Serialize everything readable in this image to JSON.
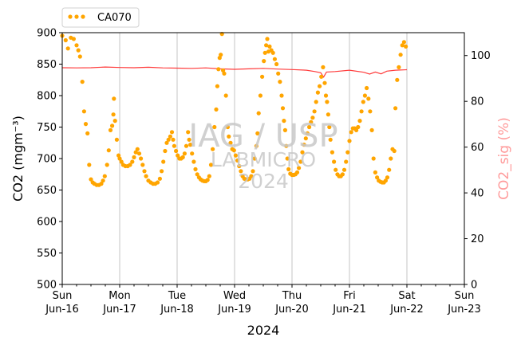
{
  "chart_data": {
    "type": "scatter",
    "xlabel": "2024",
    "ylabel": "CO2 (mgm⁻³)",
    "ylabel_right": "CO2_sig (%)",
    "xlim": [
      "2024-06-16",
      "2024-06-23"
    ],
    "ylim": [
      500,
      900
    ],
    "ylim_right": [
      0,
      110
    ],
    "y_ticks": [
      500,
      550,
      600,
      650,
      700,
      750,
      800,
      850,
      900
    ],
    "y_ticks_right": [
      0,
      20,
      40,
      60,
      80,
      100
    ],
    "x_ticks": [
      {
        "day": "Sun",
        "date": "Jun-16"
      },
      {
        "day": "Mon",
        "date": "Jun-17"
      },
      {
        "day": "Tue",
        "date": "Jun-18"
      },
      {
        "day": "Wed",
        "date": "Jun-19"
      },
      {
        "day": "Thu",
        "date": "Jun-20"
      },
      {
        "day": "Fri",
        "date": "Jun-21"
      },
      {
        "day": "Sat",
        "date": "Jun-22"
      },
      {
        "day": "Sun",
        "date": "Jun-23"
      }
    ],
    "grid": "vertical at day ticks",
    "legend_position": "top-left, above plot",
    "watermark": [
      "IAG / USP",
      "LABMICRO",
      "2024"
    ],
    "series": [
      {
        "name": "CA070",
        "axis": "left",
        "style": "points",
        "color": "#FFA500",
        "x_unit": "days since 2024-06-16 00:00",
        "points": [
          [
            0.0,
            895
          ],
          [
            0.06,
            888
          ],
          [
            0.1,
            875
          ],
          [
            0.15,
            892
          ],
          [
            0.2,
            890
          ],
          [
            0.25,
            880
          ],
          [
            0.28,
            872
          ],
          [
            0.31,
            862
          ],
          [
            0.35,
            822
          ],
          [
            0.38,
            775
          ],
          [
            0.41,
            755
          ],
          [
            0.44,
            740
          ],
          [
            0.47,
            690
          ],
          [
            0.5,
            667
          ],
          [
            0.53,
            662
          ],
          [
            0.56,
            660
          ],
          [
            0.6,
            658
          ],
          [
            0.64,
            658
          ],
          [
            0.68,
            660
          ],
          [
            0.71,
            665
          ],
          [
            0.74,
            672
          ],
          [
            0.78,
            690
          ],
          [
            0.81,
            713
          ],
          [
            0.84,
            745
          ],
          [
            0.87,
            752
          ],
          [
            0.89,
            770
          ],
          [
            0.9,
            795
          ],
          [
            0.92,
            760
          ],
          [
            0.95,
            730
          ],
          [
            0.98,
            705
          ],
          [
            1.0,
            700
          ],
          [
            1.03,
            695
          ],
          [
            1.06,
            690
          ],
          [
            1.1,
            688
          ],
          [
            1.14,
            688
          ],
          [
            1.18,
            690
          ],
          [
            1.22,
            695
          ],
          [
            1.25,
            702
          ],
          [
            1.28,
            710
          ],
          [
            1.31,
            715
          ],
          [
            1.34,
            708
          ],
          [
            1.37,
            700
          ],
          [
            1.4,
            690
          ],
          [
            1.43,
            680
          ],
          [
            1.46,
            672
          ],
          [
            1.5,
            665
          ],
          [
            1.54,
            662
          ],
          [
            1.58,
            660
          ],
          [
            1.62,
            660
          ],
          [
            1.66,
            662
          ],
          [
            1.7,
            668
          ],
          [
            1.73,
            680
          ],
          [
            1.76,
            695
          ],
          [
            1.79,
            712
          ],
          [
            1.82,
            725
          ],
          [
            1.85,
            730
          ],
          [
            1.88,
            735
          ],
          [
            1.91,
            742
          ],
          [
            1.93,
            730
          ],
          [
            1.95,
            720
          ],
          [
            1.98,
            712
          ],
          [
            2.01,
            705
          ],
          [
            2.04,
            700
          ],
          [
            2.07,
            700
          ],
          [
            2.1,
            702
          ],
          [
            2.13,
            708
          ],
          [
            2.16,
            720
          ],
          [
            2.19,
            742
          ],
          [
            2.21,
            730
          ],
          [
            2.23,
            722
          ],
          [
            2.26,
            708
          ],
          [
            2.29,
            695
          ],
          [
            2.32,
            683
          ],
          [
            2.35,
            675
          ],
          [
            2.38,
            670
          ],
          [
            2.41,
            667
          ],
          [
            2.44,
            665
          ],
          [
            2.47,
            664
          ],
          [
            2.5,
            664
          ],
          [
            2.53,
            666
          ],
          [
            2.56,
            672
          ],
          [
            2.59,
            690
          ],
          [
            2.62,
            715
          ],
          [
            2.65,
            750
          ],
          [
            2.68,
            778
          ],
          [
            2.7,
            815
          ],
          [
            2.72,
            842
          ],
          [
            2.74,
            860
          ],
          [
            2.76,
            865
          ],
          [
            2.78,
            898
          ],
          [
            2.8,
            840
          ],
          [
            2.82,
            835
          ],
          [
            2.85,
            800
          ],
          [
            2.88,
            750
          ],
          [
            2.9,
            735
          ],
          [
            2.93,
            725
          ],
          [
            2.96,
            715
          ],
          [
            2.99,
            713
          ],
          [
            3.02,
            705
          ],
          [
            3.05,
            697
          ],
          [
            3.08,
            688
          ],
          [
            3.11,
            680
          ],
          [
            3.14,
            672
          ],
          [
            3.17,
            668
          ],
          [
            3.2,
            667
          ],
          [
            3.23,
            667
          ],
          [
            3.26,
            668
          ],
          [
            3.29,
            672
          ],
          [
            3.32,
            680
          ],
          [
            3.35,
            700
          ],
          [
            3.38,
            720
          ],
          [
            3.4,
            740
          ],
          [
            3.42,
            772
          ],
          [
            3.45,
            800
          ],
          [
            3.48,
            830
          ],
          [
            3.51,
            855
          ],
          [
            3.53,
            868
          ],
          [
            3.55,
            880
          ],
          [
            3.57,
            890
          ],
          [
            3.59,
            870
          ],
          [
            3.61,
            878
          ],
          [
            3.64,
            872
          ],
          [
            3.67,
            868
          ],
          [
            3.7,
            858
          ],
          [
            3.73,
            850
          ],
          [
            3.76,
            835
          ],
          [
            3.79,
            822
          ],
          [
            3.82,
            800
          ],
          [
            3.84,
            780
          ],
          [
            3.86,
            760
          ],
          [
            3.88,
            745
          ],
          [
            3.9,
            720
          ],
          [
            3.92,
            700
          ],
          [
            3.94,
            683
          ],
          [
            3.97,
            676
          ],
          [
            4.0,
            674
          ],
          [
            4.03,
            674
          ],
          [
            4.06,
            675
          ],
          [
            4.09,
            678
          ],
          [
            4.12,
            685
          ],
          [
            4.15,
            695
          ],
          [
            4.18,
            710
          ],
          [
            4.21,
            722
          ],
          [
            4.24,
            732
          ],
          [
            4.27,
            740
          ],
          [
            4.3,
            750
          ],
          [
            4.33,
            758
          ],
          [
            4.36,
            765
          ],
          [
            4.39,
            775
          ],
          [
            4.42,
            790
          ],
          [
            4.45,
            805
          ],
          [
            4.48,
            815
          ],
          [
            4.51,
            830
          ],
          [
            4.54,
            845
          ],
          [
            4.57,
            820
          ],
          [
            4.59,
            800
          ],
          [
            4.61,
            790
          ],
          [
            4.63,
            770
          ],
          [
            4.65,
            750
          ],
          [
            4.67,
            730
          ],
          [
            4.7,
            710
          ],
          [
            4.73,
            695
          ],
          [
            4.76,
            682
          ],
          [
            4.79,
            675
          ],
          [
            4.82,
            672
          ],
          [
            4.85,
            672
          ],
          [
            4.88,
            675
          ],
          [
            4.91,
            682
          ],
          [
            4.94,
            695
          ],
          [
            4.97,
            710
          ],
          [
            5.0,
            728
          ],
          [
            5.03,
            742
          ],
          [
            5.06,
            748
          ],
          [
            5.09,
            748
          ],
          [
            5.12,
            745
          ],
          [
            5.15,
            750
          ],
          [
            5.18,
            760
          ],
          [
            5.21,
            775
          ],
          [
            5.24,
            790
          ],
          [
            5.27,
            800
          ],
          [
            5.3,
            812
          ],
          [
            5.33,
            795
          ],
          [
            5.36,
            775
          ],
          [
            5.39,
            745
          ],
          [
            5.42,
            700
          ],
          [
            5.45,
            678
          ],
          [
            5.48,
            670
          ],
          [
            5.51,
            665
          ],
          [
            5.54,
            663
          ],
          [
            5.57,
            662
          ],
          [
            5.6,
            662
          ],
          [
            5.63,
            665
          ],
          [
            5.66,
            670
          ],
          [
            5.69,
            682
          ],
          [
            5.72,
            700
          ],
          [
            5.75,
            715
          ],
          [
            5.78,
            712
          ],
          [
            5.8,
            780
          ],
          [
            5.83,
            825
          ],
          [
            5.86,
            845
          ],
          [
            5.89,
            865
          ],
          [
            5.92,
            880
          ],
          [
            5.95,
            885
          ],
          [
            5.98,
            878
          ]
        ]
      },
      {
        "name": "CO2_sig",
        "axis": "right",
        "style": "line",
        "color": "#FF3B3B",
        "x_unit": "days since 2024-06-16 00:00",
        "points": [
          [
            0.0,
            94.7
          ],
          [
            0.25,
            94.6
          ],
          [
            0.5,
            94.7
          ],
          [
            0.75,
            95.0
          ],
          [
            1.0,
            94.8
          ],
          [
            1.25,
            94.7
          ],
          [
            1.5,
            94.9
          ],
          [
            1.75,
            94.6
          ],
          [
            2.0,
            94.5
          ],
          [
            2.25,
            94.4
          ],
          [
            2.5,
            94.6
          ],
          [
            2.75,
            94.2
          ],
          [
            3.0,
            94.0
          ],
          [
            3.25,
            94.2
          ],
          [
            3.5,
            94.4
          ],
          [
            3.75,
            94.1
          ],
          [
            4.0,
            93.9
          ],
          [
            4.25,
            93.6
          ],
          [
            4.4,
            93.0
          ],
          [
            4.5,
            92.5
          ],
          [
            4.55,
            90.6
          ],
          [
            4.6,
            92.8
          ],
          [
            4.75,
            93.0
          ],
          [
            5.0,
            93.6
          ],
          [
            5.25,
            92.7
          ],
          [
            5.35,
            91.9
          ],
          [
            5.45,
            92.8
          ],
          [
            5.55,
            92.0
          ],
          [
            5.65,
            93.2
          ],
          [
            5.8,
            93.6
          ],
          [
            6.0,
            93.8
          ]
        ]
      }
    ]
  }
}
